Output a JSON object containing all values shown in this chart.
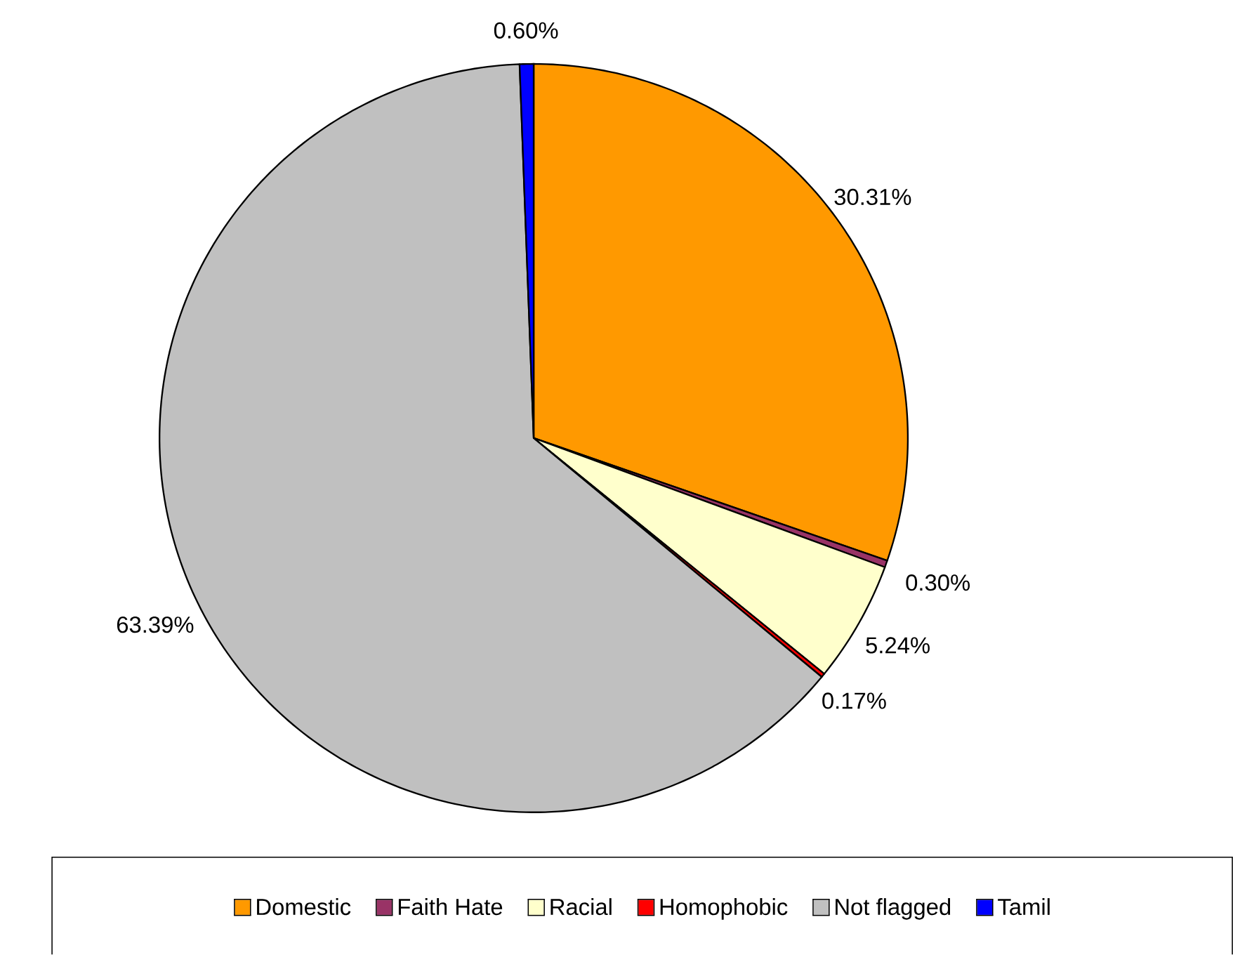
{
  "chart_data": {
    "type": "pie",
    "categories": [
      "Domestic",
      "Faith Hate",
      "Racial",
      "Homophobic",
      "Not flagged",
      "Tamil"
    ],
    "values": [
      30.31,
      0.3,
      5.24,
      0.17,
      63.39,
      0.6
    ],
    "value_labels": [
      "30.31%",
      "0.30%",
      "5.24%",
      "0.17%",
      "63.39%",
      "0.60%"
    ],
    "colors": [
      "#ff9900",
      "#993366",
      "#ffffcc",
      "#ff0000",
      "#c0c0c0",
      "#0000ff"
    ],
    "legend": "bottom"
  }
}
